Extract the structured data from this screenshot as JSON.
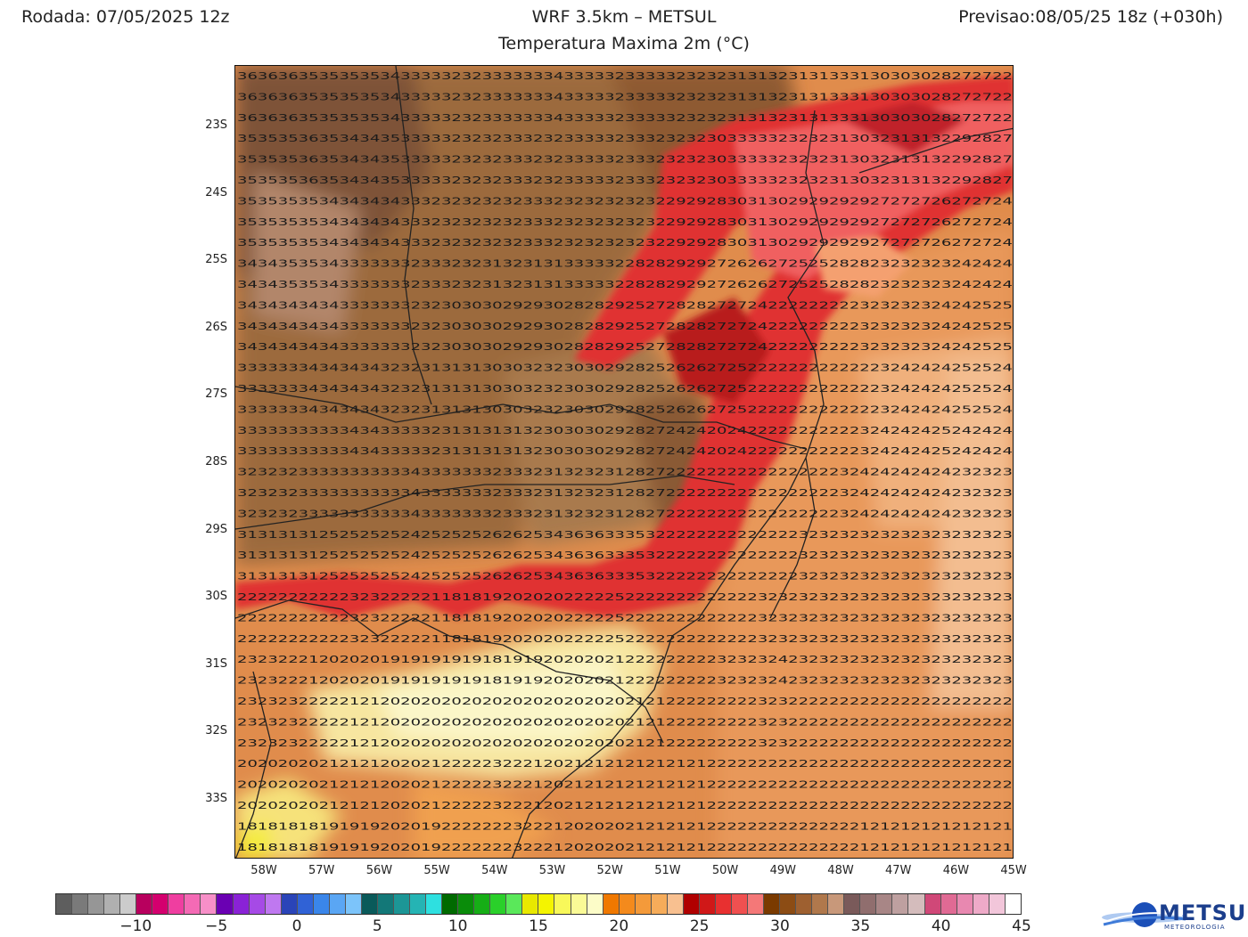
{
  "header": {
    "run_label": "Rodada: 07/05/2025 12z",
    "model_label": "WRF 3.5km – METSUL",
    "forecast_label": "Previsao:08/05/25 18z (+030h)",
    "subtitle": "Temperatura Maxima 2m (°C)"
  },
  "map": {
    "lat_labels": [
      "23S",
      "24S",
      "25S",
      "26S",
      "27S",
      "28S",
      "29S",
      "30S",
      "31S",
      "32S",
      "33S"
    ],
    "lon_labels": [
      "58W",
      "57W",
      "56W",
      "55W",
      "54W",
      "53W",
      "52W",
      "51W",
      "50W",
      "49W",
      "48W",
      "47W",
      "46W",
      "45W"
    ],
    "lat_range": [
      -33.9,
      -22.1
    ],
    "lon_range": [
      -58.4,
      -45.0
    ],
    "temperature_grid_sample": [
      [
        36,
        36,
        35,
        35,
        35,
        34,
        33,
        33,
        32,
        33,
        33,
        33,
        34,
        33,
        32,
        33,
        33,
        32,
        32,
        31,
        31,
        32,
        31,
        33,
        31,
        30,
        30,
        28,
        27,
        27,
        22
      ],
      [
        35,
        35,
        36,
        35,
        34,
        35,
        33,
        33,
        32,
        32,
        33,
        32,
        32,
        33,
        32,
        33,
        32,
        32,
        30,
        33,
        33,
        32,
        32,
        31,
        30,
        32,
        31,
        32,
        29,
        28,
        27
      ],
      [
        35,
        35,
        35,
        34,
        34,
        34,
        33,
        32,
        32,
        32,
        32,
        33,
        32,
        32,
        32,
        32,
        32,
        29,
        28,
        30,
        31,
        30,
        29,
        29,
        29,
        27,
        27,
        26,
        27,
        27,
        24
      ],
      [
        34,
        35,
        35,
        34,
        33,
        33,
        32,
        33,
        32,
        31,
        32,
        31,
        31,
        33,
        32,
        28,
        28,
        29,
        27,
        26,
        26,
        27,
        25,
        28,
        28,
        23,
        23,
        23,
        24,
        24,
        24
      ],
      [
        34,
        34,
        34,
        34,
        33,
        33,
        32,
        32,
        30,
        30,
        29,
        29,
        30,
        28,
        29,
        25,
        27,
        28,
        27,
        27,
        24,
        22,
        22,
        22,
        23,
        23,
        23,
        24,
        24,
        25,
        25
      ],
      [
        33,
        33,
        34,
        34,
        34,
        32,
        32,
        31,
        31,
        30,
        30,
        32,
        32,
        30,
        29,
        28,
        25,
        26,
        27,
        25,
        22,
        22,
        22,
        22,
        22,
        23,
        24,
        24,
        25,
        25,
        24
      ],
      [
        33,
        33,
        33,
        33,
        34,
        33,
        33,
        32,
        31,
        31,
        31,
        32,
        30,
        30,
        29,
        28,
        27,
        24,
        20,
        24,
        22,
        22,
        22,
        22,
        23,
        24,
        24,
        25,
        24,
        24,
        24
      ],
      [
        32,
        32,
        33,
        33,
        33,
        33,
        34,
        33,
        33,
        32,
        33,
        32,
        31,
        32,
        31,
        28,
        27,
        22,
        22,
        22,
        22,
        22,
        22,
        23,
        24,
        24,
        24,
        24,
        23,
        23,
        23
      ],
      [
        31,
        31,
        31,
        25,
        25,
        25,
        24,
        25,
        25,
        26,
        26,
        25,
        34,
        36,
        33,
        35,
        32,
        22,
        22,
        22,
        22,
        22,
        23,
        23,
        23,
        23,
        23,
        23,
        23,
        23,
        23
      ],
      [
        22,
        22,
        22,
        22,
        23,
        22,
        22,
        21,
        18,
        19,
        20,
        20,
        20,
        22,
        25,
        22,
        22,
        22,
        22,
        22,
        23,
        23,
        23,
        23,
        23,
        23,
        23,
        23,
        23,
        23,
        23
      ],
      [
        23,
        22,
        21,
        20,
        20,
        19,
        19,
        19,
        19,
        18,
        19,
        19,
        20,
        20,
        21,
        22,
        22,
        22,
        23,
        23,
        23,
        24,
        23,
        23,
        23,
        23,
        23,
        23,
        23,
        23,
        23
      ],
      [
        23,
        23,
        22,
        22,
        21,
        20,
        20,
        20,
        20,
        20,
        20,
        20,
        20,
        20,
        20,
        21,
        21,
        22,
        22,
        22,
        23,
        23,
        22,
        22,
        22,
        22,
        22,
        22,
        22,
        22,
        22
      ],
      [
        20,
        20,
        20,
        21,
        21,
        20,
        20,
        21,
        22,
        23,
        22,
        21,
        20,
        21,
        21,
        21,
        21,
        21,
        22,
        22,
        22,
        22,
        22,
        22,
        22,
        22,
        22,
        22,
        22,
        22,
        22
      ],
      [
        18,
        18,
        18,
        19,
        19,
        20,
        20,
        19,
        22,
        22,
        23,
        22,
        21,
        20,
        20,
        21,
        21,
        21,
        22,
        22,
        22,
        22,
        22,
        22,
        21,
        21,
        21,
        21,
        21,
        21,
        21
      ]
    ]
  },
  "colorbar": {
    "colors": [
      "#5e5e5e",
      "#7a7a7a",
      "#969696",
      "#b0b0b0",
      "#cccccc",
      "#b8005e",
      "#d4006e",
      "#ef3ea0",
      "#f46ab5",
      "#f78fc8",
      "#6a00b3",
      "#8a22d6",
      "#a64ae6",
      "#bf78f0",
      "#2a44b8",
      "#3062d6",
      "#3a86ea",
      "#5aa6f4",
      "#7cc4fa",
      "#0a5a5a",
      "#137878",
      "#1c9696",
      "#25b4b4",
      "#2ee0e0",
      "#006a00",
      "#0a8c0a",
      "#16ae16",
      "#2ad02a",
      "#5ae85a",
      "#e8e800",
      "#f4f400",
      "#f8f85a",
      "#fafa96",
      "#fcfcc8",
      "#f07800",
      "#f48a1c",
      "#f49a3a",
      "#f6ac5a",
      "#f8c090",
      "#b00000",
      "#d01818",
      "#e83030",
      "#f05050",
      "#f47878",
      "#7a3a00",
      "#8c4c14",
      "#9e6030",
      "#b0784c",
      "#c8987a",
      "#7a5a5a",
      "#906e6e",
      "#a88686",
      "#bea0a0",
      "#d4bcbc",
      "#d04878",
      "#e06a94",
      "#e888b0",
      "#eeaac8",
      "#f2c6da",
      "#ffffff"
    ],
    "tick_labels": [
      "−10",
      "−5",
      "0",
      "5",
      "10",
      "15",
      "20",
      "25",
      "30",
      "35",
      "40",
      "45"
    ]
  },
  "logo": {
    "name": "METSUL",
    "tagline": "METEOROLOGIA",
    "icon": "globe-swoosh-icon"
  }
}
